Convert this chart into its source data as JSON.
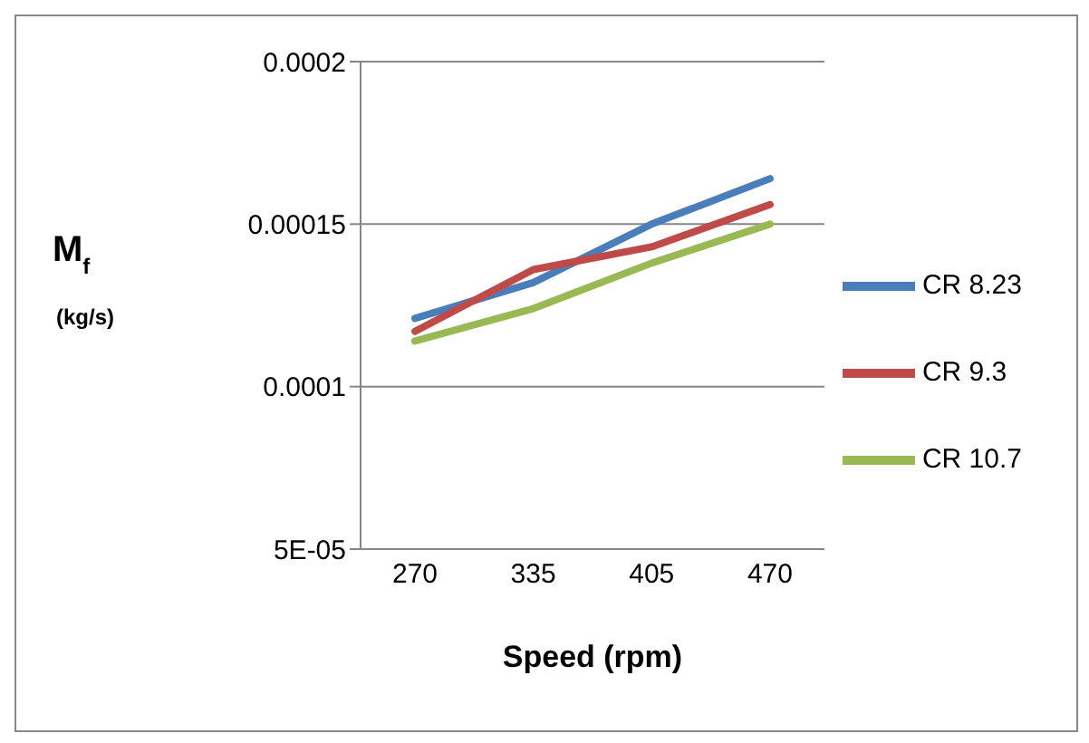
{
  "chart_data": {
    "type": "line",
    "xlabel": "Speed (rpm)",
    "ylabel": "M$_{f}$ (kg/s)",
    "categories": [
      "270",
      "335",
      "405",
      "470"
    ],
    "series": [
      {
        "name": "CR 8.23",
        "color": "#4a7ebb",
        "values": [
          0.000121,
          0.000132,
          0.00015,
          0.000164
        ]
      },
      {
        "name": "CR 9.3",
        "color": "#be4b48",
        "values": [
          0.000117,
          0.000136,
          0.000143,
          0.000156
        ]
      },
      {
        "name": "CR 10.7",
        "color": "#98b954",
        "values": [
          0.000114,
          0.000124,
          0.000138,
          0.00015
        ]
      }
    ],
    "ylim": [
      5e-05,
      0.0002
    ],
    "yticks": [
      {
        "value": 5e-05,
        "label": "5E-05"
      },
      {
        "value": 0.0001,
        "label": "0.0001"
      },
      {
        "value": 0.00015,
        "label": "0.00015"
      },
      {
        "value": 0.0002,
        "label": "0.0002"
      }
    ],
    "grid": "y",
    "legend": "right",
    "marker": "none",
    "line_style": "solid"
  }
}
